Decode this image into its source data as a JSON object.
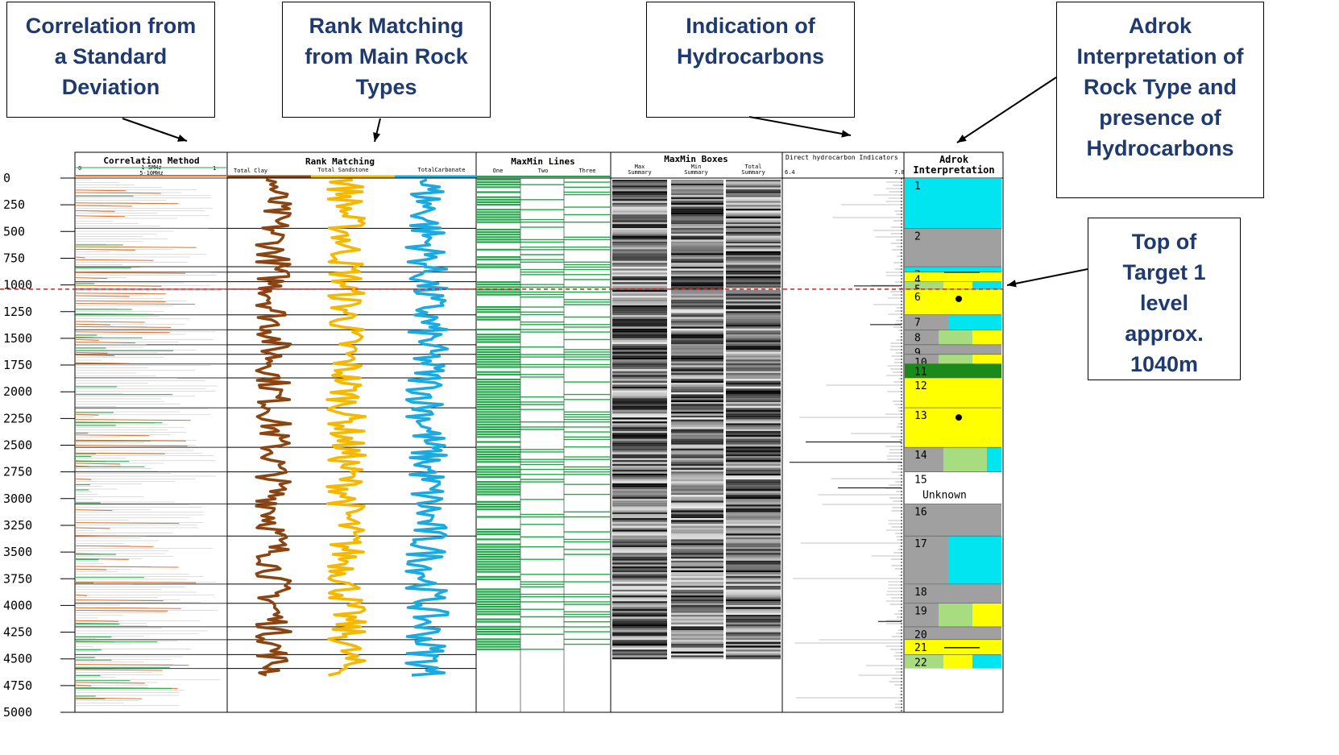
{
  "callouts": {
    "correlation": "Correlation from\na Standard\nDeviation",
    "rank": "Rank Matching\nfrom Main Rock\nTypes",
    "hydro": "Indication of\nHydrocarbons",
    "adrok": "Adrok\nInterpretation of\nRock Type and\npresence of\nHydrocarbons",
    "target": "Top of\nTarget 1\nlevel\napprox.\n1040m"
  },
  "colors": {
    "clay": "#8b4513",
    "sandstone": "#f5b800",
    "carbonate": "#1ba9e0",
    "lines_green": "#22a84a",
    "cyan": "#00e5f0",
    "grey": "#a0a0a0",
    "yellow": "#ffff00",
    "lightgreen": "#a8dc80",
    "darkgreen": "#1a8a1a",
    "target_line": "#d02020",
    "callout_text": "#1f3a6e"
  },
  "chart_data": {
    "type": "well-log",
    "depth_axis": {
      "ticks": [
        0,
        250,
        500,
        750,
        1000,
        1250,
        1500,
        1750,
        2000,
        2250,
        2500,
        2750,
        3000,
        3250,
        3500,
        3750,
        4000,
        4250,
        4500,
        4750,
        5000
      ],
      "range": [
        0,
        5000
      ]
    },
    "tracks": {
      "correlation": {
        "title": "Correlation Method",
        "scale_min": "0",
        "scale_max": "1",
        "legend": [
          "1-5MHz",
          "5-10MHz"
        ]
      },
      "rank": {
        "title": "Rank Matching",
        "series": [
          "Total Clay",
          "Total Sandstone",
          "TotalCarbonate"
        ]
      },
      "lines": {
        "title": "MaxMin Lines",
        "series": [
          "One",
          "Two",
          "Three"
        ]
      },
      "boxes": {
        "title": "MaxMin Boxes",
        "series": [
          "Max\nSummary",
          "Min\nSummary",
          "Total\nSummary"
        ]
      },
      "dhi": {
        "title": "Direct hydrocarbon Indicators",
        "scale_min": "6.4",
        "scale_max": "7.8"
      },
      "adrok": {
        "title": "Adrok\nInterpretation"
      }
    },
    "target_depth": 1040,
    "adrok_zones": [
      {
        "label": "1",
        "top": 0,
        "bottom": 470,
        "rock": "carbonate"
      },
      {
        "label": "2",
        "top": 470,
        "bottom": 830,
        "rock": "clay"
      },
      {
        "label": "3",
        "top": 830,
        "bottom": 880,
        "rock": "carbonate"
      },
      {
        "label": "4",
        "top": 880,
        "bottom": 970,
        "rock": "sandstone"
      },
      {
        "label": "5",
        "top": 970,
        "bottom": 1040,
        "rock": "mixed"
      },
      {
        "label": "6",
        "top": 1040,
        "bottom": 1280,
        "rock": "sandstone",
        "hydrocarbon": true
      },
      {
        "label": "7",
        "top": 1280,
        "bottom": 1420,
        "rock": "clay-carbonate"
      },
      {
        "label": "8",
        "top": 1420,
        "bottom": 1560,
        "rock": "clay-sandstone"
      },
      {
        "label": "9",
        "top": 1560,
        "bottom": 1650,
        "rock": "clay"
      },
      {
        "label": "10",
        "top": 1650,
        "bottom": 1740,
        "rock": "clay-sandstone"
      },
      {
        "label": "11",
        "top": 1740,
        "bottom": 1870,
        "rock": "darkgreen"
      },
      {
        "label": "12",
        "top": 1870,
        "bottom": 2150,
        "rock": "sandstone"
      },
      {
        "label": "13",
        "top": 2150,
        "bottom": 2520,
        "rock": "sandstone",
        "hydrocarbon": true
      },
      {
        "label": "14",
        "top": 2520,
        "bottom": 2750,
        "rock": "clay-sandstone-carbonate"
      },
      {
        "label": "15",
        "top": 2750,
        "bottom": 3050,
        "rock": "unknown",
        "note": "Unknown"
      },
      {
        "label": "16",
        "top": 3050,
        "bottom": 3350,
        "rock": "clay"
      },
      {
        "label": "17",
        "top": 3350,
        "bottom": 3800,
        "rock": "clay-carbonate"
      },
      {
        "label": "18",
        "top": 3800,
        "bottom": 3980,
        "rock": "clay"
      },
      {
        "label": "19",
        "top": 3980,
        "bottom": 4200,
        "rock": "clay-sandstone"
      },
      {
        "label": "20",
        "top": 4200,
        "bottom": 4320,
        "rock": "clay"
      },
      {
        "label": "21",
        "top": 4320,
        "bottom": 4460,
        "rock": "sandstone"
      },
      {
        "label": "22",
        "top": 4460,
        "bottom": 4590,
        "rock": "mixed"
      }
    ]
  }
}
